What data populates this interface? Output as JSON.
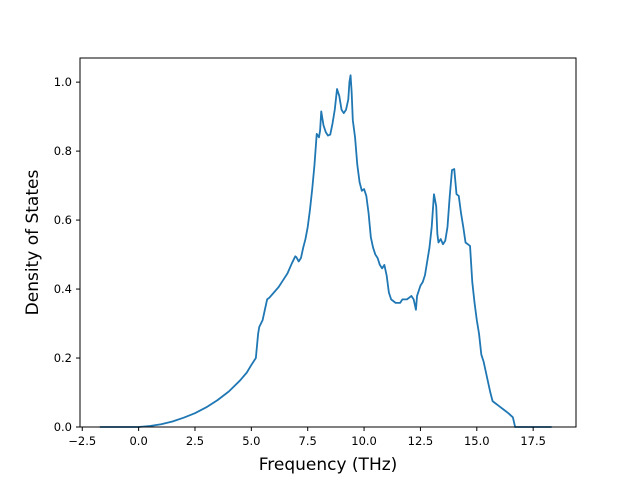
{
  "chart_data": {
    "type": "line",
    "title": "",
    "xlabel": "Frequency (THz)",
    "ylabel": "Density of States",
    "xlim": [
      -2.6,
      19.4
    ],
    "ylim": [
      0,
      1.07
    ],
    "xticks": [
      -2.5,
      0.0,
      2.5,
      5.0,
      7.5,
      10.0,
      12.5,
      15.0,
      17.5
    ],
    "xtick_labels": [
      "−2.5",
      "0.0",
      "2.5",
      "5.0",
      "7.5",
      "10.0",
      "12.5",
      "15.0",
      "17.5"
    ],
    "yticks": [
      0.0,
      0.2,
      0.4,
      0.6,
      0.8,
      1.0
    ],
    "ytick_labels": [
      "0.0",
      "0.2",
      "0.4",
      "0.6",
      "0.8",
      "1.0"
    ],
    "grid": false,
    "line_color": "#1f77b4",
    "series": [
      {
        "x": [
          -1.7,
          0.0,
          0.5,
          1.0,
          1.5,
          2.0,
          2.5,
          3.0,
          3.5,
          4.0,
          4.5,
          4.8,
          5.0,
          5.2,
          5.3,
          5.35,
          5.5,
          5.6,
          5.7,
          5.8,
          6.0,
          6.2,
          6.4,
          6.6,
          6.8,
          6.95,
          7.0,
          7.1,
          7.2,
          7.3,
          7.4,
          7.5,
          7.6,
          7.7,
          7.8,
          7.9,
          8.0,
          8.05,
          8.1,
          8.2,
          8.3,
          8.4,
          8.5,
          8.6,
          8.7,
          8.8,
          8.9,
          9.0,
          9.1,
          9.2,
          9.3,
          9.35,
          9.4,
          9.45,
          9.5,
          9.6,
          9.7,
          9.8,
          9.9,
          10.0,
          10.1,
          10.2,
          10.3,
          10.4,
          10.5,
          10.6,
          10.7,
          10.8,
          10.9,
          11.0,
          11.1,
          11.2,
          11.3,
          11.4,
          11.5,
          11.6,
          11.7,
          11.8,
          11.9,
          12.0,
          12.1,
          12.2,
          12.3,
          12.35,
          12.4,
          12.5,
          12.6,
          12.7,
          12.8,
          12.9,
          13.0,
          13.1,
          13.2,
          13.25,
          13.3,
          13.4,
          13.5,
          13.6,
          13.7,
          13.8,
          13.9,
          14.0,
          14.1,
          14.2,
          14.3,
          14.4,
          14.5,
          14.6,
          14.7,
          14.8,
          14.9,
          15.0,
          15.1,
          15.2,
          15.3,
          15.4,
          15.5,
          15.6,
          15.7,
          15.8,
          16.0,
          16.2,
          16.4,
          16.6,
          16.7,
          17.0,
          17.5,
          18.0,
          18.3
        ],
        "y": [
          0.0,
          0.0,
          0.003,
          0.008,
          0.016,
          0.027,
          0.04,
          0.057,
          0.078,
          0.103,
          0.135,
          0.158,
          0.18,
          0.2,
          0.27,
          0.29,
          0.31,
          0.34,
          0.37,
          0.375,
          0.39,
          0.405,
          0.425,
          0.445,
          0.475,
          0.495,
          0.492,
          0.48,
          0.49,
          0.52,
          0.545,
          0.58,
          0.63,
          0.69,
          0.76,
          0.85,
          0.84,
          0.86,
          0.915,
          0.875,
          0.855,
          0.845,
          0.848,
          0.88,
          0.92,
          0.98,
          0.96,
          0.92,
          0.91,
          0.92,
          0.95,
          1.0,
          1.02,
          0.97,
          0.89,
          0.84,
          0.76,
          0.71,
          0.685,
          0.69,
          0.67,
          0.62,
          0.55,
          0.52,
          0.5,
          0.49,
          0.47,
          0.46,
          0.47,
          0.44,
          0.39,
          0.37,
          0.365,
          0.36,
          0.36,
          0.36,
          0.37,
          0.37,
          0.37,
          0.375,
          0.38,
          0.37,
          0.34,
          0.38,
          0.39,
          0.41,
          0.42,
          0.44,
          0.48,
          0.52,
          0.58,
          0.675,
          0.64,
          0.56,
          0.535,
          0.545,
          0.53,
          0.54,
          0.58,
          0.67,
          0.745,
          0.748,
          0.675,
          0.67,
          0.62,
          0.58,
          0.535,
          0.53,
          0.525,
          0.42,
          0.36,
          0.31,
          0.27,
          0.21,
          0.19,
          0.16,
          0.13,
          0.1,
          0.075,
          0.07,
          0.06,
          0.05,
          0.04,
          0.028,
          0.0,
          0.0,
          0.0,
          0.0,
          0.0
        ]
      }
    ]
  }
}
